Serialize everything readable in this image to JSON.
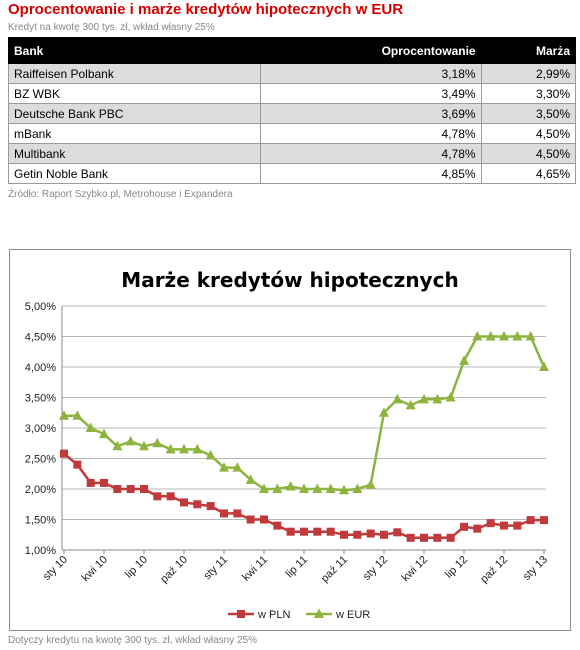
{
  "page": {
    "title": "Oprocentowanie i marże kredytów hipotecznych w EUR",
    "subtitle": "Kredyt na kwotę 300 tys. zł, wkład własny 25%",
    "source": "Źródło: Raport Szybko.pl, Metrohouse i Expandera",
    "footnote": "Dotyczy kredytu na kwotę 300 tys. zł, wkład własny 25%"
  },
  "table": {
    "headers": [
      "Bank",
      "Oprocentowanie",
      "Marża"
    ],
    "rows": [
      [
        "Raiffeisen Polbank",
        "3,18%",
        "2,99%"
      ],
      [
        "BZ WBK",
        "3,49%",
        "3,30%"
      ],
      [
        "Deutsche Bank PBC",
        "3,69%",
        "3,50%"
      ],
      [
        "mBank",
        "4,78%",
        "4,50%"
      ],
      [
        "Multibank",
        "4,78%",
        "4,50%"
      ],
      [
        "Getin Noble Bank",
        "4,85%",
        "4,65%"
      ]
    ]
  },
  "chart_data": {
    "type": "line",
    "title": "Marże kredytów hipotecznych",
    "xlabel": "",
    "ylabel": "",
    "ylim": [
      1.0,
      5.0
    ],
    "y_ticks": [
      "1,00%",
      "1,50%",
      "2,00%",
      "2,50%",
      "3,00%",
      "3,50%",
      "4,00%",
      "4,50%",
      "5,00%"
    ],
    "x_tick_labels": [
      "sty 10",
      "kwi 10",
      "lip 10",
      "paź 10",
      "sty 11",
      "kwi 11",
      "lip 11",
      "paź 11",
      "sty 12",
      "kwi 12",
      "lip 12",
      "paź 12",
      "sty 13"
    ],
    "grid": "horizontal",
    "legend_position": "bottom",
    "categories": [
      "sty 10",
      "lut 10",
      "mar 10",
      "kwi 10",
      "maj 10",
      "cze 10",
      "lip 10",
      "sie 10",
      "wrz 10",
      "paź 10",
      "lis 10",
      "gru 10",
      "sty 11",
      "lut 11",
      "mar 11",
      "kwi 11",
      "maj 11",
      "cze 11",
      "lip 11",
      "sie 11",
      "wrz 11",
      "paź 11",
      "lis 11",
      "gru 11",
      "sty 12",
      "lut 12",
      "mar 12",
      "kwi 12",
      "maj 12",
      "cze 12",
      "lip 12",
      "sie 12",
      "wrz 12",
      "paź 12",
      "lis 12",
      "gru 12",
      "sty 13"
    ],
    "series": [
      {
        "name": "w PLN",
        "color": "#c0393b",
        "marker": "square",
        "values": [
          2.58,
          2.4,
          2.1,
          2.1,
          2.0,
          2.0,
          2.0,
          1.88,
          1.88,
          1.78,
          1.75,
          1.72,
          1.6,
          1.6,
          1.5,
          1.5,
          1.4,
          1.3,
          1.3,
          1.3,
          1.3,
          1.25,
          1.25,
          1.27,
          1.25,
          1.29,
          1.2,
          1.2,
          1.2,
          1.2,
          1.38,
          1.35,
          1.44,
          1.4,
          1.4,
          1.49,
          1.49
        ]
      },
      {
        "name": "w EUR",
        "color": "#8db43e",
        "marker": "triangle",
        "values": [
          3.2,
          3.2,
          3.0,
          2.9,
          2.7,
          2.78,
          2.7,
          2.75,
          2.65,
          2.65,
          2.65,
          2.55,
          2.35,
          2.35,
          2.15,
          2.0,
          2.0,
          2.04,
          2.0,
          2.0,
          2.0,
          1.98,
          2.0,
          2.07,
          3.25,
          3.47,
          3.37,
          3.47,
          3.47,
          3.5,
          4.1,
          4.5,
          4.5,
          4.5,
          4.5,
          4.5,
          4.0
        ]
      }
    ]
  }
}
